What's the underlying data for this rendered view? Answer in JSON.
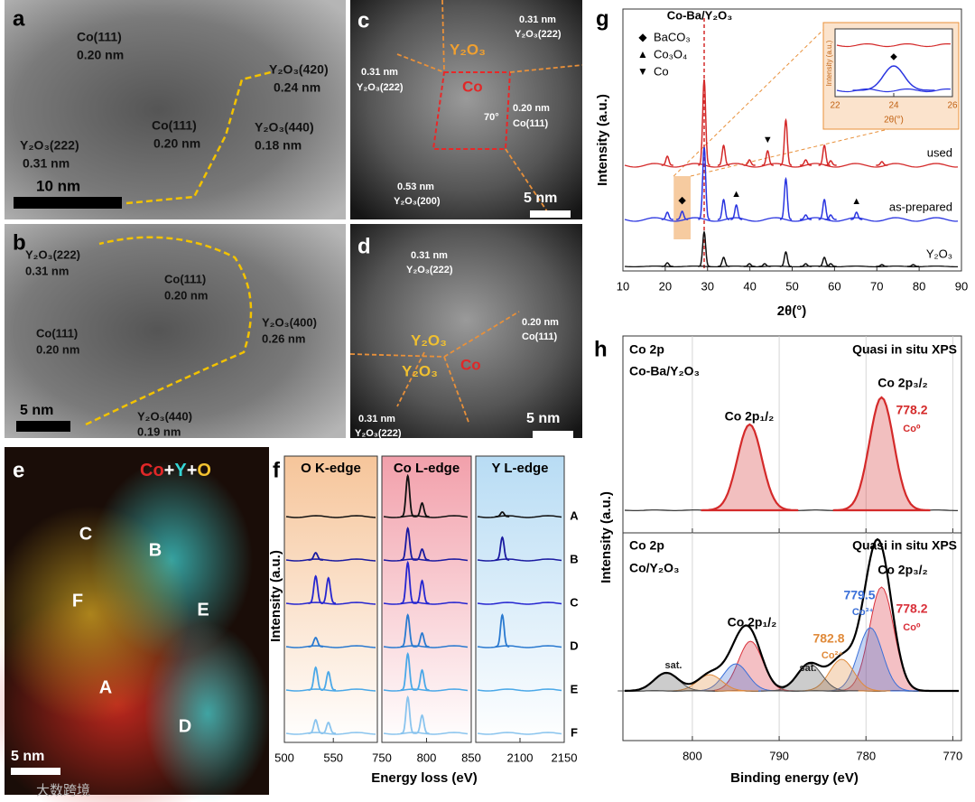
{
  "watermark": "大数跨境",
  "images": {
    "a": {
      "label": "a",
      "annotations": [
        "Co(111)",
        "0.20 nm",
        "Y₂O₃(420)",
        "0.24 nm",
        "Co(111)",
        "0.20 nm",
        "Y₂O₃(440)",
        "0.18 nm",
        "Y₂O₃(222)",
        "0.31 nm"
      ],
      "scale_bar": "10 nm"
    },
    "b": {
      "label": "b",
      "annotations": [
        "Y₂O₃(222)",
        "0.31 nm",
        "Co(111)",
        "0.20 nm",
        "Co(111)",
        "0.20 nm",
        "Y₂O₃(400)",
        "0.26 nm",
        "Y₂O₃(440)",
        "0.19 nm"
      ],
      "scale_bar": "5 nm"
    },
    "c": {
      "label": "c",
      "annotations": [
        "0.31 nm",
        "Y₂O₃(222)",
        "Y₂O₃",
        "Co",
        "0.31 nm",
        "Y₂O₃(222)",
        "0.20 nm",
        "Co(111)",
        "70°",
        "0.53 nm",
        "Y₂O₃(200)"
      ],
      "scale_bar": "5 nm"
    },
    "d": {
      "label": "d",
      "annotations": [
        "0.31 nm",
        "Y₂O₃(222)",
        "0.20 nm",
        "Co(111)",
        "Y₂O₃",
        "Y₂O₃",
        "Co",
        "0.31 nm",
        "Y₂O₃(222)"
      ],
      "scale_bar": "5 nm"
    },
    "e": {
      "label": "e",
      "elements": [
        "Co",
        "+",
        "Y",
        "+",
        "O"
      ],
      "element_colors": [
        "#e02828",
        "#ffffff",
        "#35d6d6",
        "#ffffff",
        "#f2c230"
      ],
      "points": [
        "C",
        "B",
        "F",
        "E",
        "A",
        "D"
      ],
      "scale_bar": "5 nm"
    }
  },
  "chart_data": [
    {
      "type": "line",
      "label": "f",
      "ylabel": "Intensity (a.u.)",
      "xlabel": "Energy loss (eV)",
      "segments": [
        {
          "label": "O K-edge",
          "xlim": [
            500,
            595
          ],
          "xticks": [
            500,
            550
          ],
          "color": "#f6c59a"
        },
        {
          "label": "Co L-edge",
          "xlim": [
            750,
            850
          ],
          "xticks": [
            750,
            800,
            850
          ],
          "color": "#f2a0ab"
        },
        {
          "label": "Y L-edge",
          "xlim": [
            2050,
            2150
          ],
          "xticks": [
            2100,
            2150
          ],
          "color": "#b8dcf4"
        }
      ],
      "series": [
        {
          "name": "A",
          "color": "#111111",
          "x": [
            779,
            795,
            2080
          ],
          "values": [
            45,
            15,
            5
          ]
        },
        {
          "name": "B",
          "color": "#1a1aa0",
          "x": [
            532,
            779,
            795,
            2080
          ],
          "values": [
            8,
            35,
            12,
            25
          ]
        },
        {
          "name": "C",
          "color": "#2626d0",
          "x": [
            532,
            545,
            779,
            795
          ],
          "values": [
            30,
            28,
            45,
            25
          ]
        },
        {
          "name": "D",
          "color": "#2a7ad0",
          "x": [
            532,
            779,
            795,
            2080
          ],
          "values": [
            10,
            35,
            15,
            35
          ]
        },
        {
          "name": "E",
          "color": "#4aa8e8",
          "x": [
            532,
            545,
            779,
            795
          ],
          "values": [
            25,
            20,
            40,
            22
          ]
        },
        {
          "name": "F",
          "color": "#8ac4ee",
          "x": [
            532,
            545,
            779,
            795
          ],
          "values": [
            15,
            12,
            40,
            20
          ]
        }
      ]
    },
    {
      "type": "line",
      "label": "g",
      "title": "Co-Ba/Y₂O₃",
      "xlabel": "2θ(°)",
      "ylabel": "Intensity (a.u.)",
      "xlim": [
        10,
        90
      ],
      "xticks": [
        10,
        20,
        30,
        40,
        50,
        60,
        70,
        80,
        90
      ],
      "series": [
        {
          "name": "used",
          "color": "#d42a2a",
          "x": [
            20.5,
            29.2,
            33.8,
            39.9,
            44.2,
            48.5,
            53.2,
            57.6,
            59.1,
            71.2
          ],
          "values": [
            10,
            95,
            22,
            6,
            16,
            50,
            6,
            22,
            5,
            4
          ]
        },
        {
          "name": "as-prepared",
          "color": "#2a35e0",
          "x": [
            20.5,
            24.0,
            29.2,
            33.8,
            36.8,
            48.5,
            53.2,
            57.6,
            59.1,
            65.2
          ],
          "values": [
            8,
            9,
            80,
            22,
            16,
            45,
            5,
            22,
            5,
            8
          ]
        },
        {
          "name": "Y₂O₃",
          "color": "#111111",
          "x": [
            20.5,
            29.2,
            33.8,
            39.9,
            43.5,
            48.5,
            53.2,
            57.6,
            59.1,
            71.2,
            78.6
          ],
          "values": [
            4,
            38,
            10,
            3,
            3,
            16,
            3,
            10,
            3,
            2,
            2
          ]
        }
      ],
      "markers": [
        {
          "name": "BaCO₃",
          "symbol": "◆",
          "on": "as-prepared",
          "x": [
            24.0
          ]
        },
        {
          "name": "Co₃O₄",
          "symbol": "▲",
          "on": "as-prepared",
          "x": [
            36.8,
            65.2
          ]
        },
        {
          "name": "Co",
          "symbol": "▼",
          "on": "used",
          "x": [
            44.2
          ]
        }
      ],
      "inset": {
        "xlim": [
          22,
          26
        ],
        "xticks": [
          22,
          24,
          26
        ],
        "xlabel": "2θ(°)",
        "ylabel": "Intensity (a.u.)"
      }
    },
    {
      "type": "line",
      "label": "h",
      "ylabel": "Intensity (a.u.)",
      "xlim": [
        808,
        769
      ],
      "xticks": [
        800,
        790,
        780,
        770
      ],
      "grid": true,
      "annotations": [
        "Co 2p",
        "Co-Ba/Y₂O₃",
        "Quasi in situ XPS",
        "Co 2p₁/₂",
        "Co 2p₃/₂"
      ],
      "series": [
        {
          "name": "Co⁰",
          "color": "#d42a2a",
          "x": [
            778.2,
            793.4
          ],
          "values": [
            125,
            95
          ]
        }
      ]
    },
    {
      "type": "line",
      "xlabel": "Binding energy (eV)",
      "xlim": [
        808,
        769
      ],
      "xticks": [
        800,
        790,
        780,
        770
      ],
      "grid": true,
      "annotations": [
        "Co 2p",
        "Co/Y₂O₃",
        "Quasi in situ XPS",
        "Co 2p₁/₂",
        "Co 2p₃/₂"
      ],
      "series": [
        {
          "name": "Co⁰",
          "color": "#d9303a",
          "x": [
            778.2,
            793.3
          ],
          "values": [
            115,
            55
          ]
        },
        {
          "name": "Co³⁺",
          "color": "#3a6fd8",
          "x": [
            779.5,
            795
          ],
          "values": [
            70,
            30
          ]
        },
        {
          "name": "Co²⁺",
          "color": "#e08a3a",
          "x": [
            782.8,
            798
          ],
          "values": [
            35,
            18
          ]
        },
        {
          "name": "sat.",
          "color": "#555555",
          "x": [
            786.5,
            803
          ],
          "values": [
            30,
            20
          ]
        }
      ]
    }
  ]
}
